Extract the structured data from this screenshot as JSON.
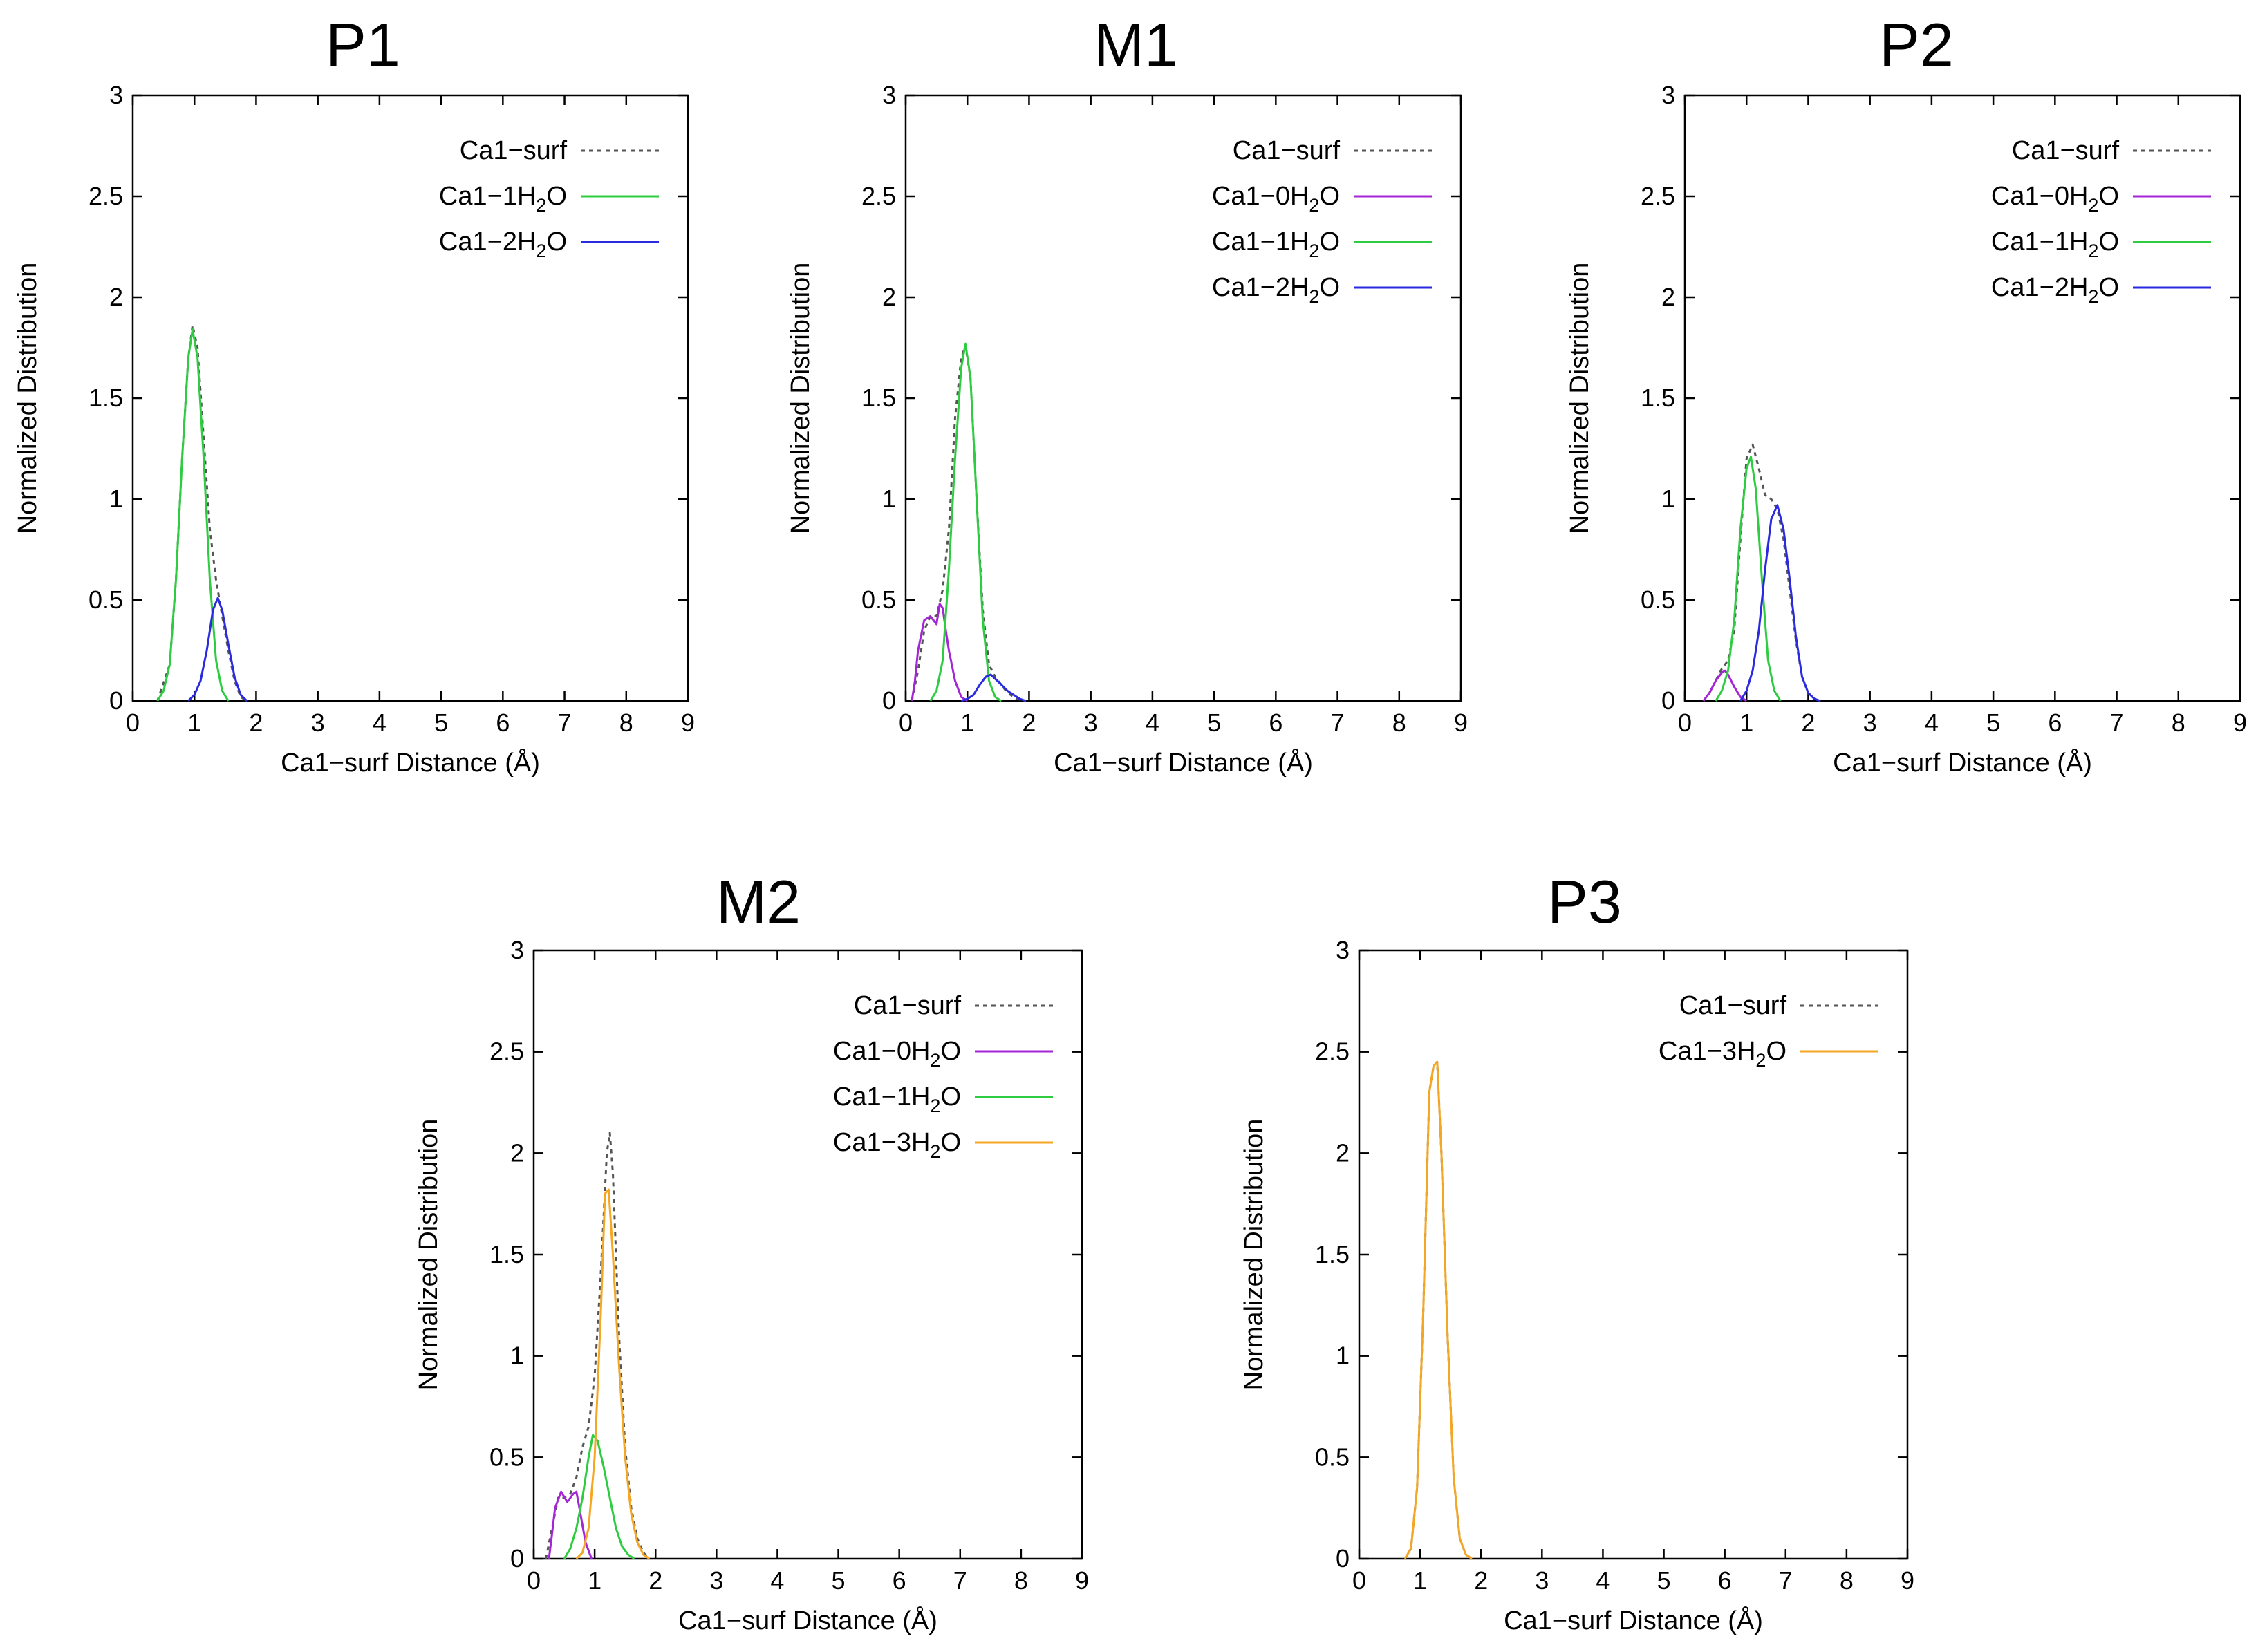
{
  "figure": {
    "background": "#ffffff"
  },
  "series_styles": {
    "Ca1-surf": {
      "color": "#555555",
      "dash": true
    },
    "Ca1-0H2O": {
      "color": "#a526d6",
      "dash": false
    },
    "Ca1-1H2O": {
      "color": "#2ecc40",
      "dash": false
    },
    "Ca1-2H2O": {
      "color": "#2a2ae0",
      "dash": false
    },
    "Ca1-3H2O": {
      "color": "#f5a623",
      "dash": false
    }
  },
  "chart_data": [
    {
      "id": "p1",
      "title": "P1",
      "type": "line",
      "xlabel": "Ca1−surf Distance (Å)",
      "ylabel": "Normalized Distribution",
      "xlim": [
        0,
        9
      ],
      "ylim": [
        0,
        3
      ],
      "xticks": [
        "0",
        "1",
        "2",
        "3",
        "4",
        "5",
        "6",
        "7",
        "8",
        "9"
      ],
      "yticks": [
        "0",
        "0.5",
        "1",
        "1.5",
        "2",
        "2.5",
        "3"
      ],
      "legend_position": "top-right",
      "series": [
        {
          "key": "Ca1-surf",
          "legend": {
            "base": "Ca1−surf",
            "sub": "",
            "tail": ""
          },
          "x": [
            0.4,
            0.6,
            0.7,
            0.8,
            0.9,
            0.97,
            1.05,
            1.15,
            1.25,
            1.35,
            1.45,
            1.55,
            1.65,
            1.75,
            1.85
          ],
          "y": [
            0,
            0.18,
            0.6,
            1.2,
            1.7,
            1.86,
            1.75,
            1.3,
            0.85,
            0.6,
            0.42,
            0.25,
            0.1,
            0.02,
            0
          ]
        },
        {
          "key": "Ca1-1H2O",
          "legend": {
            "base": "Ca1−1H",
            "sub": "2",
            "tail": "O"
          },
          "x": [
            0.4,
            0.5,
            0.6,
            0.7,
            0.8,
            0.9,
            0.97,
            1.05,
            1.15,
            1.25,
            1.35,
            1.45,
            1.55
          ],
          "y": [
            0,
            0.05,
            0.18,
            0.6,
            1.2,
            1.7,
            1.84,
            1.7,
            1.2,
            0.6,
            0.2,
            0.05,
            0
          ]
        },
        {
          "key": "Ca1-2H2O",
          "legend": {
            "base": "Ca1−2H",
            "sub": "2",
            "tail": "O"
          },
          "x": [
            0.9,
            1.0,
            1.1,
            1.2,
            1.3,
            1.38,
            1.45,
            1.55,
            1.65,
            1.75,
            1.85
          ],
          "y": [
            0,
            0.03,
            0.1,
            0.25,
            0.45,
            0.51,
            0.45,
            0.28,
            0.12,
            0.03,
            0
          ]
        }
      ]
    },
    {
      "id": "m1",
      "title": "M1",
      "type": "line",
      "xlabel": "Ca1−surf Distance (Å)",
      "ylabel": "Normalized Distribution",
      "xlim": [
        0,
        9
      ],
      "ylim": [
        0,
        3
      ],
      "xticks": [
        "0",
        "1",
        "2",
        "3",
        "4",
        "5",
        "6",
        "7",
        "8",
        "9"
      ],
      "yticks": [
        "0",
        "0.5",
        "1",
        "1.5",
        "2",
        "2.5",
        "3"
      ],
      "legend_position": "top-right",
      "series": [
        {
          "key": "Ca1-surf",
          "legend": {
            "base": "Ca1−surf",
            "sub": "",
            "tail": ""
          },
          "x": [
            0.1,
            0.2,
            0.3,
            0.4,
            0.5,
            0.6,
            0.7,
            0.8,
            0.9,
            0.97,
            1.05,
            1.15,
            1.25,
            1.35,
            1.45,
            1.55,
            1.65,
            1.8,
            1.95
          ],
          "y": [
            0,
            0.15,
            0.35,
            0.42,
            0.42,
            0.55,
            0.85,
            1.4,
            1.7,
            1.76,
            1.6,
            1.0,
            0.45,
            0.18,
            0.12,
            0.08,
            0.04,
            0.01,
            0
          ]
        },
        {
          "key": "Ca1-0H2O",
          "legend": {
            "base": "Ca1−0H",
            "sub": "2",
            "tail": "O"
          },
          "x": [
            0.1,
            0.15,
            0.2,
            0.3,
            0.4,
            0.5,
            0.55,
            0.6,
            0.65,
            0.7,
            0.8,
            0.9,
            1.0
          ],
          "y": [
            0,
            0.1,
            0.25,
            0.4,
            0.42,
            0.38,
            0.48,
            0.46,
            0.35,
            0.25,
            0.1,
            0.02,
            0
          ]
        },
        {
          "key": "Ca1-1H2O",
          "legend": {
            "base": "Ca1−1H",
            "sub": "2",
            "tail": "O"
          },
          "x": [
            0.4,
            0.5,
            0.6,
            0.7,
            0.8,
            0.9,
            0.97,
            1.05,
            1.15,
            1.25,
            1.35,
            1.45,
            1.55
          ],
          "y": [
            0,
            0.05,
            0.2,
            0.65,
            1.2,
            1.65,
            1.77,
            1.6,
            1.0,
            0.4,
            0.1,
            0.02,
            0
          ]
        },
        {
          "key": "Ca1-2H2O",
          "legend": {
            "base": "Ca1−2H",
            "sub": "2",
            "tail": "O"
          },
          "x": [
            0.9,
            1.0,
            1.1,
            1.2,
            1.3,
            1.38,
            1.45,
            1.55,
            1.65,
            1.75,
            1.85,
            1.95
          ],
          "y": [
            0,
            0.01,
            0.03,
            0.08,
            0.12,
            0.13,
            0.11,
            0.08,
            0.05,
            0.03,
            0.01,
            0
          ]
        }
      ]
    },
    {
      "id": "p2",
      "title": "P2",
      "type": "line",
      "xlabel": "Ca1−surf Distance (Å)",
      "ylabel": "Normalized Distribution",
      "xlim": [
        0,
        9
      ],
      "ylim": [
        0,
        3
      ],
      "xticks": [
        "0",
        "1",
        "2",
        "3",
        "4",
        "5",
        "6",
        "7",
        "8",
        "9"
      ],
      "yticks": [
        "0",
        "0.5",
        "1",
        "1.5",
        "2",
        "2.5",
        "3"
      ],
      "legend_position": "top-right",
      "series": [
        {
          "key": "Ca1-surf",
          "legend": {
            "base": "Ca1−surf",
            "sub": "",
            "tail": ""
          },
          "x": [
            0.3,
            0.4,
            0.5,
            0.6,
            0.7,
            0.8,
            0.9,
            1.0,
            1.1,
            1.2,
            1.3,
            1.4,
            1.5,
            1.6,
            1.7,
            1.8,
            1.9,
            2.0,
            2.1,
            2.2
          ],
          "y": [
            0,
            0.04,
            0.1,
            0.16,
            0.2,
            0.35,
            0.8,
            1.2,
            1.27,
            1.15,
            1.02,
            1.0,
            0.95,
            0.8,
            0.55,
            0.3,
            0.12,
            0.04,
            0.01,
            0
          ]
        },
        {
          "key": "Ca1-0H2O",
          "legend": {
            "base": "Ca1−0H",
            "sub": "2",
            "tail": "O"
          },
          "x": [
            0.3,
            0.4,
            0.5,
            0.6,
            0.65,
            0.7,
            0.8,
            0.9,
            1.0
          ],
          "y": [
            0,
            0.04,
            0.1,
            0.14,
            0.15,
            0.13,
            0.07,
            0.02,
            0
          ]
        },
        {
          "key": "Ca1-1H2O",
          "legend": {
            "base": "Ca1−1H",
            "sub": "2",
            "tail": "O"
          },
          "x": [
            0.5,
            0.6,
            0.7,
            0.8,
            0.9,
            1.0,
            1.07,
            1.15,
            1.25,
            1.35,
            1.45,
            1.55
          ],
          "y": [
            0,
            0.05,
            0.15,
            0.4,
            0.85,
            1.15,
            1.21,
            1.05,
            0.6,
            0.2,
            0.05,
            0
          ]
        },
        {
          "key": "Ca1-2H2O",
          "legend": {
            "base": "Ca1−2H",
            "sub": "2",
            "tail": "O"
          },
          "x": [
            0.9,
            1.0,
            1.1,
            1.2,
            1.3,
            1.4,
            1.5,
            1.6,
            1.7,
            1.8,
            1.9,
            2.0,
            2.1,
            2.2
          ],
          "y": [
            0,
            0.05,
            0.15,
            0.35,
            0.65,
            0.9,
            0.97,
            0.85,
            0.6,
            0.32,
            0.12,
            0.04,
            0.01,
            0
          ]
        }
      ]
    },
    {
      "id": "m2",
      "title": "M2",
      "type": "line",
      "xlabel": "Ca1−surf Distance (Å)",
      "ylabel": "Normalized Distribution",
      "xlim": [
        0,
        9
      ],
      "ylim": [
        0,
        3
      ],
      "xticks": [
        "0",
        "1",
        "2",
        "3",
        "4",
        "5",
        "6",
        "7",
        "8",
        "9"
      ],
      "yticks": [
        "0",
        "0.5",
        "1",
        "1.5",
        "2",
        "2.5",
        "3"
      ],
      "legend_position": "top-right",
      "series": [
        {
          "key": "Ca1-surf",
          "legend": {
            "base": "Ca1−surf",
            "sub": "",
            "tail": ""
          },
          "x": [
            0.2,
            0.3,
            0.4,
            0.5,
            0.6,
            0.7,
            0.8,
            0.9,
            1.0,
            1.1,
            1.2,
            1.25,
            1.3,
            1.4,
            1.5,
            1.6,
            1.7,
            1.8,
            1.9
          ],
          "y": [
            0,
            0.15,
            0.3,
            0.3,
            0.32,
            0.4,
            0.55,
            0.65,
            0.9,
            1.4,
            2.0,
            2.1,
            1.9,
            1.1,
            0.55,
            0.25,
            0.1,
            0.03,
            0
          ]
        },
        {
          "key": "Ca1-0H2O",
          "legend": {
            "base": "Ca1−0H",
            "sub": "2",
            "tail": "O"
          },
          "x": [
            0.25,
            0.3,
            0.35,
            0.45,
            0.55,
            0.65,
            0.7,
            0.75,
            0.85,
            0.95
          ],
          "y": [
            0,
            0.12,
            0.25,
            0.33,
            0.28,
            0.32,
            0.33,
            0.25,
            0.08,
            0
          ]
        },
        {
          "key": "Ca1-1H2O",
          "legend": {
            "base": "Ca1−1H",
            "sub": "2",
            "tail": "O"
          },
          "x": [
            0.5,
            0.6,
            0.7,
            0.8,
            0.9,
            0.97,
            1.05,
            1.15,
            1.25,
            1.35,
            1.45,
            1.55,
            1.65
          ],
          "y": [
            0,
            0.05,
            0.15,
            0.3,
            0.5,
            0.61,
            0.58,
            0.45,
            0.3,
            0.15,
            0.06,
            0.02,
            0
          ]
        },
        {
          "key": "Ca1-3H2O",
          "legend": {
            "base": "Ca1−3H",
            "sub": "2",
            "tail": "O"
          },
          "x": [
            0.7,
            0.8,
            0.9,
            1.0,
            1.1,
            1.17,
            1.23,
            1.3,
            1.4,
            1.5,
            1.6,
            1.7,
            1.8,
            1.9
          ],
          "y": [
            0,
            0.03,
            0.15,
            0.5,
            1.2,
            1.8,
            1.82,
            1.5,
            0.95,
            0.5,
            0.22,
            0.08,
            0.02,
            0
          ]
        }
      ]
    },
    {
      "id": "p3",
      "title": "P3",
      "type": "line",
      "xlabel": "Ca1−surf Distance (Å)",
      "ylabel": "Normalized Distribution",
      "xlim": [
        0,
        9
      ],
      "ylim": [
        0,
        3
      ],
      "xticks": [
        "0",
        "1",
        "2",
        "3",
        "4",
        "5",
        "6",
        "7",
        "8",
        "9"
      ],
      "yticks": [
        "0",
        "0.5",
        "1",
        "1.5",
        "2",
        "2.5",
        "3"
      ],
      "legend_position": "top-right",
      "series": [
        {
          "key": "Ca1-surf",
          "legend": {
            "base": "Ca1−surf",
            "sub": "",
            "tail": ""
          },
          "x": [
            0.75,
            0.85,
            0.95,
            1.05,
            1.15,
            1.22,
            1.28,
            1.35,
            1.45,
            1.55,
            1.65,
            1.75,
            1.85
          ],
          "y": [
            0,
            0.05,
            0.35,
            1.2,
            2.3,
            2.43,
            2.45,
            2.0,
            1.1,
            0.4,
            0.1,
            0.02,
            0
          ]
        },
        {
          "key": "Ca1-3H2O",
          "legend": {
            "base": "Ca1−3H",
            "sub": "2",
            "tail": "O"
          },
          "x": [
            0.75,
            0.85,
            0.95,
            1.05,
            1.15,
            1.22,
            1.28,
            1.35,
            1.45,
            1.55,
            1.65,
            1.75,
            1.85
          ],
          "y": [
            0,
            0.05,
            0.35,
            1.2,
            2.3,
            2.43,
            2.45,
            2.0,
            1.1,
            0.4,
            0.1,
            0.02,
            0
          ]
        }
      ]
    }
  ]
}
